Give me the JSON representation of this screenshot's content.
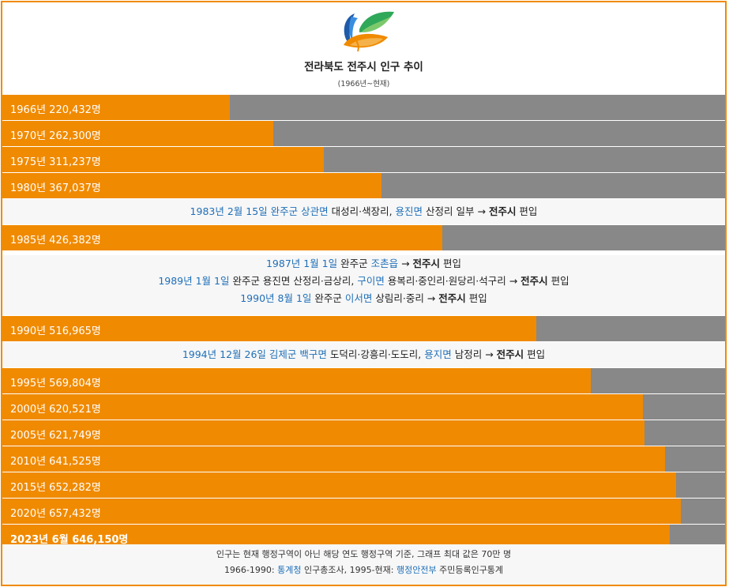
{
  "title": "전라북도 전주시 인구 추이",
  "subtitle": "(1966년~현재)",
  "chart_data": {
    "type": "bar",
    "orientation": "horizontal",
    "title": "전라북도 전주시 인구 추이",
    "subtitle": "(1966년~현재)",
    "xlim": [
      0,
      700000
    ],
    "colors": {
      "bar": "#f08a00",
      "track": "#888888"
    },
    "bars": [
      {
        "label": "1966년 220,432명",
        "value": 220432
      },
      {
        "label": "1970년 262,300명",
        "value": 262300
      },
      {
        "label": "1975년 311,237명",
        "value": 311237
      },
      {
        "label": "1980년 367,037명",
        "value": 367037
      },
      {
        "label": "1985년 426,382명",
        "value": 426382
      },
      {
        "label": "1990년 516,965명",
        "value": 516965
      },
      {
        "label": "1995년 569,804명",
        "value": 569804
      },
      {
        "label": "2000년 620,521명",
        "value": 620521
      },
      {
        "label": "2005년 621,749명",
        "value": 621749
      },
      {
        "label": "2010년 641,525명",
        "value": 641525
      },
      {
        "label": "2015년 652,282명",
        "value": 652282
      },
      {
        "label": "2020년 657,432명",
        "value": 657432
      },
      {
        "label": "2023년 6월 646,150명",
        "value": 646150,
        "bold": true
      }
    ]
  },
  "events": {
    "e1983": [
      {
        "t": "1983년 2월 15일",
        "link": true
      },
      {
        "t": " "
      },
      {
        "t": "완주군 상관면",
        "link": true
      },
      {
        "t": " 대성리·색장리, "
      },
      {
        "t": "용진면",
        "link": true
      },
      {
        "t": " 산정리 일부 → "
      },
      {
        "t": "전주시",
        "bold": true
      },
      {
        "t": " 편입"
      }
    ],
    "e1987": [
      {
        "t": "1987년 1월 1일",
        "link": true
      },
      {
        "t": " 완주군 "
      },
      {
        "t": "조촌읍",
        "link": true
      },
      {
        "t": " → "
      },
      {
        "t": "전주시",
        "bold": true
      },
      {
        "t": " 편입"
      }
    ],
    "e1989": [
      {
        "t": "1989년 1월 1일",
        "link": true
      },
      {
        "t": " 완주군 용진면 산정리·금상리, "
      },
      {
        "t": "구이면",
        "link": true
      },
      {
        "t": " 용복리·중인리·원당리·석구리 → "
      },
      {
        "t": "전주시",
        "bold": true
      },
      {
        "t": " 편입"
      }
    ],
    "e1990": [
      {
        "t": "1990년 8월 1일",
        "link": true
      },
      {
        "t": " 완주군 "
      },
      {
        "t": "이서면",
        "link": true
      },
      {
        "t": " 상림리·중리 → "
      },
      {
        "t": "전주시",
        "bold": true
      },
      {
        "t": " 편입"
      }
    ],
    "e1994": [
      {
        "t": "1994년 12월 26일",
        "link": true
      },
      {
        "t": " "
      },
      {
        "t": "김제군 백구면",
        "link": true
      },
      {
        "t": " 도덕리·강흥리·도도리, "
      },
      {
        "t": "용지면",
        "link": true
      },
      {
        "t": " 남정리 → "
      },
      {
        "t": "전주시",
        "bold": true
      },
      {
        "t": " 편입"
      }
    ]
  },
  "footer": {
    "line1": "인구는 현재 행정구역이 아닌 해당 연도 행정구역 기준, 그래프 최대 값은 70만 명",
    "line2": [
      {
        "t": "1966-1990: "
      },
      {
        "t": "통계청",
        "link": true
      },
      {
        "t": " 인구총조사, 1995-현재: "
      },
      {
        "t": "행정안전부",
        "link": true
      },
      {
        "t": " 주민등록인구통계"
      }
    ]
  }
}
